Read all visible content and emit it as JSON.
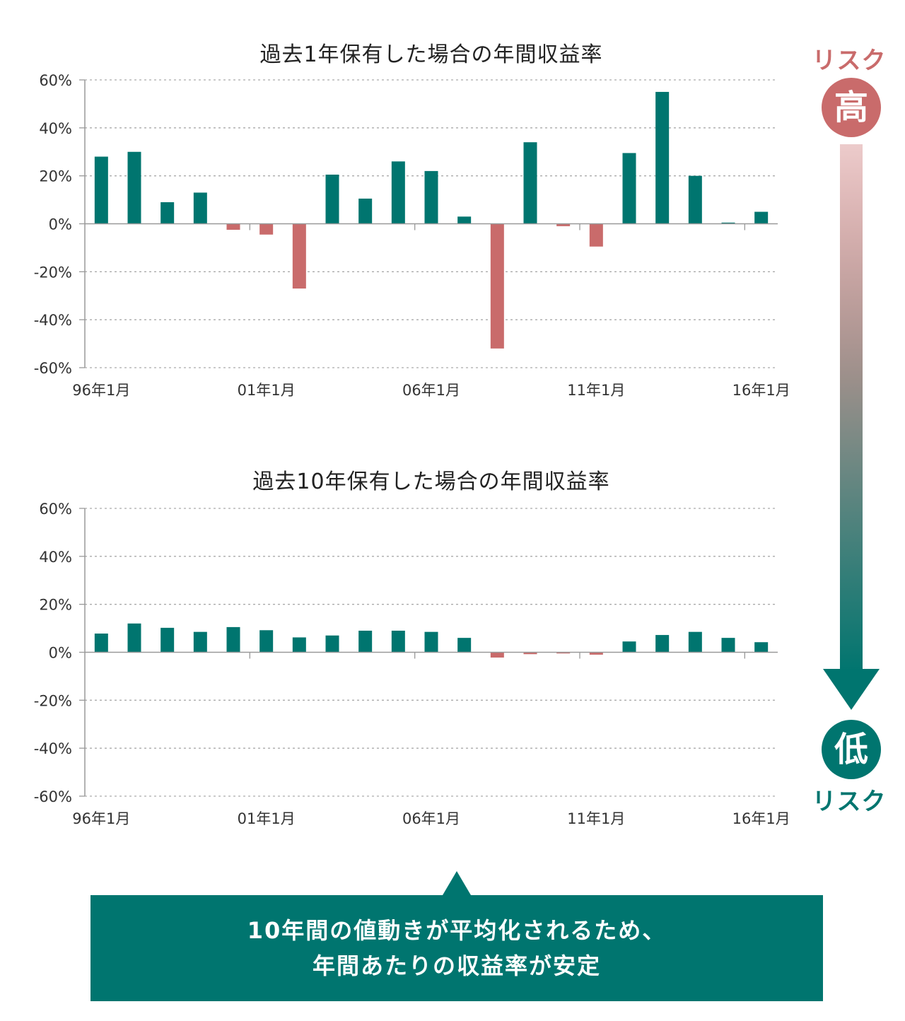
{
  "colors": {
    "positive": "#00756f",
    "negative": "#c96b6b",
    "grid": "#aaaaaa",
    "axis": "#999999",
    "risk_high": "#c96b6b",
    "risk_low": "#00756f",
    "callout_bg": "#00756f"
  },
  "chart_data": [
    {
      "type": "bar",
      "title": "過去1年保有した場合の年間収益率",
      "y_ticks": [
        "60%",
        "40%",
        "20%",
        "0%",
        "-20%",
        "-40%",
        "-60%"
      ],
      "ylim": [
        -60,
        60
      ],
      "x_tick_labels": [
        "96年1月",
        "01年1月",
        "06年1月",
        "11年1月",
        "16年1月"
      ],
      "grid": true,
      "values": [
        28,
        30,
        9,
        13,
        -2.5,
        -4.5,
        -27,
        20.5,
        10.5,
        26,
        22,
        3,
        -52,
        34,
        -1,
        -9.5,
        29.5,
        55,
        20,
        0.5,
        5
      ]
    },
    {
      "type": "bar",
      "title": "過去10年保有した場合の年間収益率",
      "y_ticks": [
        "60%",
        "40%",
        "20%",
        "0%",
        "-20%",
        "-40%",
        "-60%"
      ],
      "ylim": [
        -60,
        60
      ],
      "x_tick_labels": [
        "96年1月",
        "01年1月",
        "06年1月",
        "11年1月",
        "16年1月"
      ],
      "grid": true,
      "values": [
        7.8,
        12,
        10.2,
        8.5,
        10.5,
        9.2,
        6.2,
        7,
        9,
        9,
        8.5,
        6,
        -2.2,
        -0.8,
        -0.5,
        -1,
        4.5,
        7.2,
        8.5,
        6,
        4.2
      ]
    }
  ],
  "risk": {
    "top_label": "リスク",
    "top_symbol": "高",
    "bottom_symbol": "低",
    "bottom_label": "リスク"
  },
  "callout": {
    "line1": "10年間の値動きが平均化されるため、",
    "line2": "年間あたりの収益率が安定"
  }
}
